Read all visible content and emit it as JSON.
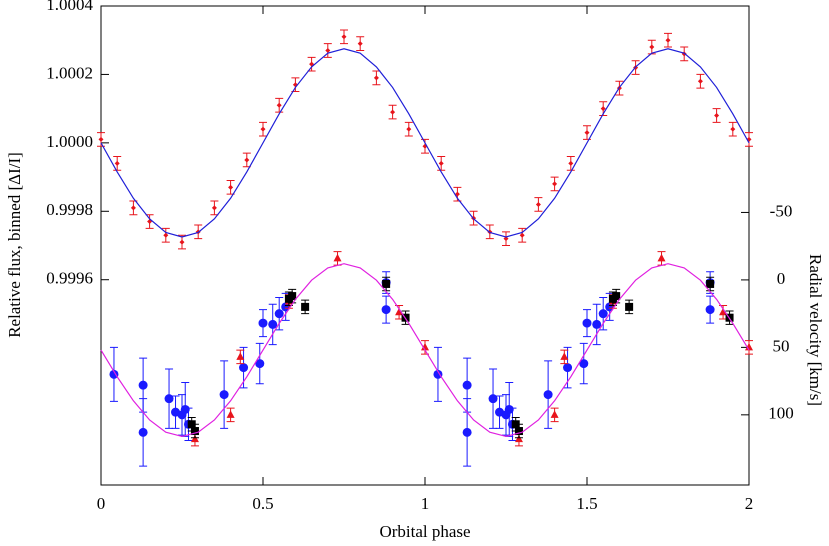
{
  "chart_data": {
    "type": "scatter",
    "xlabel": "Orbital phase",
    "ylabel": "Relative flux, binned [ΔI/I]",
    "y2label": "Radial velocity [km/s]",
    "xlim": [
      0,
      2
    ],
    "xticks": [
      0,
      0.5,
      1,
      1.5,
      2
    ],
    "ylim": [
      0.999,
      1.0004
    ],
    "yticks": [
      0.9996,
      0.9998,
      {
        "value": 1,
        "label": "1.0000"
      },
      1.0002,
      1.0004
    ],
    "y2lim": [
      152,
      -203
    ],
    "y2ticks": [
      -50,
      0,
      50,
      100
    ],
    "series": [
      {
        "type": "scatter",
        "marker": "diamond",
        "color": "#e8141c",
        "x": [
          0,
          0.05,
          0.1,
          0.15,
          0.2,
          0.25,
          0.3,
          0.35,
          0.4,
          0.45,
          0.5,
          0.55,
          0.6,
          0.65,
          0.7,
          0.75,
          0.8,
          0.85,
          0.9,
          0.95,
          1,
          1.05,
          1.1,
          1.15,
          1.2,
          1.25,
          1.3,
          1.35,
          1.4,
          1.45,
          1.5,
          1.55,
          1.6,
          1.65,
          1.7,
          1.75,
          1.8,
          1.85,
          1.9,
          1.95,
          2
        ],
        "values": [
          1.00001,
          0.99994,
          0.99981,
          0.99977,
          0.99973,
          0.99971,
          0.99974,
          0.99981,
          0.99987,
          0.99995,
          1.00004,
          1.00011,
          1.00017,
          1.00023,
          1.00027,
          1.00031,
          1.00029,
          1.00019,
          1.00009,
          1.00004,
          0.99999,
          0.99994,
          0.99985,
          0.99978,
          0.99974,
          0.99972,
          0.99973,
          0.99982,
          0.99988,
          0.99994,
          1.00003,
          1.0001,
          1.00016,
          1.00022,
          1.00028,
          1.0003,
          1.00026,
          1.00018,
          1.00008,
          1.00004,
          1.00001
        ],
        "errors": [
          2e-05,
          2e-05,
          2e-05,
          2e-05,
          2e-05,
          2e-05,
          2e-05,
          2e-05,
          2e-05,
          2e-05,
          2e-05,
          2e-05,
          2e-05,
          2e-05,
          2e-05,
          2e-05,
          2e-05,
          2e-05,
          2e-05,
          2e-05,
          2e-05,
          2e-05,
          2e-05,
          2e-05,
          2e-05,
          2e-05,
          2e-05,
          2e-05,
          2e-05,
          2e-05,
          2e-05,
          2e-05,
          2e-05,
          2e-05,
          2e-05,
          2e-05,
          2e-05,
          2e-05,
          2e-05,
          2e-05,
          2e-05
        ]
      },
      {
        "type": "line",
        "color": "#1f1fd8",
        "x": [
          0,
          0.05,
          0.1,
          0.15,
          0.2,
          0.25,
          0.3,
          0.35,
          0.4,
          0.45,
          0.5,
          0.55,
          0.6,
          0.65,
          0.7,
          0.75,
          0.8,
          0.85,
          0.9,
          0.95,
          1,
          1.05,
          1.1,
          1.15,
          1.2,
          1.25,
          1.3,
          1.35,
          1.4,
          1.45,
          1.5,
          1.55,
          1.6,
          1.65,
          1.7,
          1.75,
          1.8,
          1.85,
          1.9,
          1.95,
          2
        ],
        "values": [
          1,
          0.999915,
          0.999838,
          0.999778,
          0.999738,
          0.999725,
          0.999738,
          0.999778,
          0.999838,
          0.999915,
          1,
          1.000085,
          1.000162,
          1.000222,
          1.000262,
          1.000275,
          1.000262,
          1.000222,
          1.000162,
          1.000085,
          1,
          0.999915,
          0.999838,
          0.999778,
          0.999738,
          0.999725,
          0.999738,
          0.999778,
          0.999838,
          0.999915,
          1,
          1.000085,
          1.000162,
          1.000222,
          1.000262,
          1.000275,
          1.000262,
          1.000222,
          1.000162,
          1.000085,
          1
        ]
      },
      {
        "type": "line",
        "axis": "y2",
        "color": "#e020e0",
        "x": [
          0,
          0.05,
          0.1,
          0.15,
          0.2,
          0.25,
          0.3,
          0.35,
          0.4,
          0.45,
          0.5,
          0.55,
          0.6,
          0.65,
          0.7,
          0.75,
          0.8,
          0.85,
          0.9,
          0.95,
          1,
          1.05,
          1.1,
          1.15,
          1.2,
          1.25,
          1.3,
          1.35,
          1.4,
          1.45,
          1.5,
          1.55,
          1.6,
          1.65,
          1.7,
          1.75,
          1.8,
          1.85,
          1.9,
          1.95,
          2
        ],
        "values": [
          52,
          71.8,
          89.6,
          103.8,
          112.9,
          116,
          112.9,
          103.8,
          89.6,
          71.8,
          52,
          32.2,
          14.4,
          0.2,
          -8.9,
          -12,
          -8.9,
          0.2,
          14.4,
          32.2,
          52,
          71.8,
          89.6,
          103.8,
          112.9,
          116,
          112.9,
          103.8,
          89.6,
          71.8,
          52,
          32.2,
          14.4,
          0.2,
          -8.9,
          -12,
          -8.9,
          0.2,
          14.4,
          32.2,
          52
        ]
      },
      {
        "type": "scatter",
        "axis": "y2",
        "marker": "circle",
        "color": "#1a1aff",
        "x": [
          0.04,
          0.13,
          0.13,
          0.21,
          0.23,
          0.25,
          0.26,
          0.27,
          0.38,
          0.44,
          0.49,
          0.5,
          0.53,
          0.55,
          0.57,
          0.88,
          0.88,
          1.04,
          1.13,
          1.13,
          1.21,
          1.23,
          1.25,
          1.26,
          1.27,
          1.38,
          1.44,
          1.49,
          1.5,
          1.53,
          1.55,
          1.57,
          1.88,
          1.88
        ],
        "values": [
          70,
          78,
          113,
          88,
          98,
          100,
          96,
          107,
          85,
          65,
          62,
          32,
          33,
          25,
          20,
          2,
          22,
          70,
          78,
          113,
          88,
          98,
          100,
          96,
          107,
          85,
          65,
          62,
          32,
          33,
          25,
          20,
          2,
          22
        ],
        "errors": [
          20,
          20,
          25,
          22,
          12,
          15,
          20,
          12,
          25,
          15,
          15,
          10,
          15,
          12,
          10,
          8,
          10,
          20,
          20,
          25,
          22,
          12,
          15,
          20,
          12,
          25,
          15,
          15,
          10,
          15,
          12,
          10,
          8,
          10
        ]
      },
      {
        "type": "scatter",
        "axis": "y2",
        "marker": "triangle",
        "color": "#e8141c",
        "x": [
          0.29,
          0.4,
          0.43,
          0.58,
          0.73,
          0.92,
          1,
          1.29,
          1.4,
          1.43,
          1.58,
          1.73,
          1.92,
          2
        ],
        "values": [
          118,
          100,
          57,
          16,
          -16,
          24,
          50,
          118,
          100,
          57,
          16,
          -16,
          24,
          50
        ],
        "errors": [
          5,
          5,
          5,
          5,
          5,
          5,
          5,
          5,
          5,
          5,
          5,
          5,
          5,
          5
        ]
      },
      {
        "type": "scatter",
        "axis": "y2",
        "marker": "square",
        "color": "#000000",
        "x": [
          0.28,
          0.29,
          0.58,
          0.59,
          0.63,
          0.88,
          0.94,
          1.28,
          1.29,
          1.58,
          1.59,
          1.63,
          1.88,
          1.94
        ],
        "values": [
          107,
          112,
          14,
          12,
          20,
          3,
          28,
          107,
          112,
          14,
          12,
          20,
          3,
          28
        ],
        "errors": [
          5,
          5,
          5,
          5,
          5,
          5,
          5,
          5,
          5,
          5,
          5,
          5,
          5,
          5
        ]
      }
    ]
  }
}
